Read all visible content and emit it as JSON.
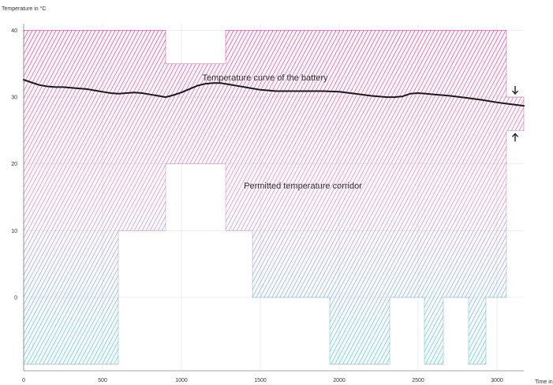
{
  "chart_data": {
    "type": "line",
    "ylabel": "Temperature in °C",
    "xlabel": "Time in",
    "xlim": [
      0,
      3170
    ],
    "ylim": [
      -11,
      41
    ],
    "x_ticks": [
      0,
      500,
      1000,
      1500,
      2000,
      2500,
      3000
    ],
    "x_tick_labels": [
      "0",
      "500",
      "1000",
      "1500",
      "2000",
      "2500",
      "3000"
    ],
    "y_ticks": [
      0,
      10,
      20,
      30,
      40
    ],
    "y_tick_labels": [
      "0",
      "10",
      "20",
      "30",
      "40"
    ],
    "grid": true,
    "corridor_upper": [
      [
        0,
        40
      ],
      [
        900,
        40
      ],
      [
        900,
        35
      ],
      [
        1280,
        35
      ],
      [
        1280,
        40
      ],
      [
        3060,
        40
      ],
      [
        3060,
        30
      ],
      [
        3170,
        30
      ]
    ],
    "corridor_lower_segments": [
      [
        [
          0,
          -10
        ],
        [
          600,
          -10
        ],
        [
          600,
          10
        ],
        [
          900,
          10
        ],
        [
          900,
          20
        ],
        [
          1280,
          20
        ],
        [
          1280,
          10
        ],
        [
          1450,
          10
        ],
        [
          1450,
          0
        ],
        [
          1940,
          0
        ],
        [
          1940,
          -10
        ],
        [
          2320,
          -10
        ],
        [
          2320,
          0
        ],
        [
          2540,
          0
        ],
        [
          2540,
          -10
        ],
        [
          2660,
          -10
        ],
        [
          2660,
          0
        ],
        [
          2820,
          0
        ],
        [
          2820,
          -10
        ],
        [
          2930,
          -10
        ],
        [
          2930,
          0
        ],
        [
          3060,
          0
        ],
        [
          3060,
          25
        ],
        [
          3170,
          25
        ]
      ]
    ],
    "series": [
      {
        "name": "Temperature curve of the battery",
        "color": "#1a1a1a",
        "x": [
          0,
          50,
          100,
          150,
          200,
          250,
          300,
          350,
          400,
          450,
          500,
          550,
          600,
          650,
          700,
          750,
          800,
          850,
          900,
          950,
          1000,
          1050,
          1100,
          1150,
          1200,
          1250,
          1300,
          1350,
          1400,
          1450,
          1500,
          1600,
          1700,
          1800,
          1900,
          2000,
          2100,
          2200,
          2300,
          2350,
          2400,
          2450,
          2500,
          2550,
          2600,
          2700,
          2800,
          2900,
          3000,
          3100,
          3170
        ],
        "y": [
          32.6,
          32.2,
          31.8,
          31.6,
          31.5,
          31.5,
          31.4,
          31.3,
          31.2,
          31.0,
          30.8,
          30.6,
          30.5,
          30.6,
          30.7,
          30.6,
          30.4,
          30.2,
          30.0,
          30.3,
          30.7,
          31.2,
          31.7,
          32.0,
          32.1,
          32.1,
          31.9,
          31.7,
          31.5,
          31.3,
          31.1,
          30.9,
          30.9,
          30.9,
          30.9,
          30.8,
          30.5,
          30.2,
          30.0,
          30.0,
          30.1,
          30.5,
          30.6,
          30.5,
          30.4,
          30.2,
          29.9,
          29.6,
          29.2,
          28.9,
          28.7
        ]
      }
    ],
    "annotations": [
      {
        "text": "Temperature curve of the battery",
        "x": 1530,
        "y": 32.5
      },
      {
        "text": "Permitted temperature corridor",
        "x": 1770,
        "y": 16.3
      }
    ],
    "corridor_colors": {
      "top": "#c23a8c",
      "bottom": "#4cc4d4"
    }
  }
}
